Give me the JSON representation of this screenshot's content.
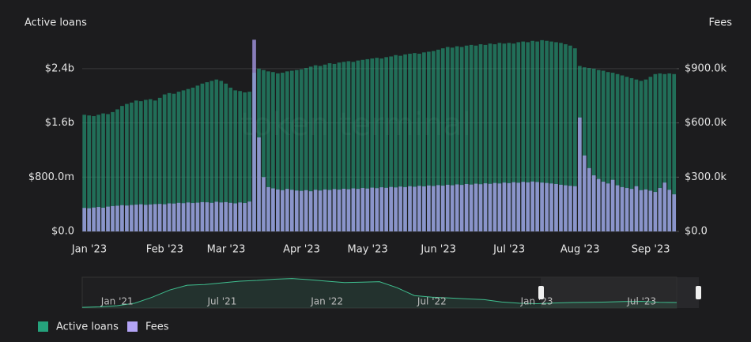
{
  "chart_data": [
    {
      "type": "bar",
      "y_label": "Active loans",
      "y2_label": "Fees",
      "watermark": "token terminal",
      "categories": [
        null,
        "Jan '23",
        null,
        null,
        null,
        null,
        null,
        null,
        null,
        null,
        null,
        null,
        null,
        null,
        null,
        null,
        null,
        "Feb '23",
        null,
        null,
        null,
        null,
        null,
        null,
        null,
        null,
        null,
        null,
        null,
        null,
        "Mar '23",
        null,
        null,
        null,
        null,
        null,
        null,
        null,
        null,
        null,
        null,
        null,
        null,
        null,
        null,
        null,
        "Apr '23",
        null,
        null,
        null,
        null,
        null,
        null,
        null,
        null,
        null,
        null,
        null,
        null,
        null,
        "May '23",
        null,
        null,
        null,
        null,
        null,
        null,
        null,
        null,
        null,
        null,
        null,
        null,
        null,
        null,
        "Jun '23",
        null,
        null,
        null,
        null,
        null,
        null,
        null,
        null,
        null,
        null,
        null,
        null,
        null,
        null,
        "Jul '23",
        null,
        null,
        null,
        null,
        null,
        null,
        null,
        null,
        null,
        null,
        null,
        null,
        null,
        null,
        "Aug '23",
        null,
        null,
        null,
        null,
        null,
        null,
        null,
        null,
        null,
        null,
        null,
        null,
        null,
        null,
        "Sep '23",
        null,
        null,
        null,
        null,
        null
      ],
      "series": [
        {
          "name": "Active loans",
          "color": "#25a27c",
          "values": [
            1.72,
            1.71,
            1.7,
            1.72,
            1.74,
            1.73,
            1.76,
            1.8,
            1.85,
            1.88,
            1.9,
            1.93,
            1.92,
            1.94,
            1.95,
            1.93,
            1.97,
            2.02,
            2.04,
            2.03,
            2.06,
            2.08,
            2.1,
            2.12,
            2.15,
            2.18,
            2.2,
            2.22,
            2.24,
            2.22,
            2.18,
            2.12,
            2.08,
            2.07,
            2.05,
            2.06,
            2.34,
            2.4,
            2.38,
            2.36,
            2.35,
            2.33,
            2.34,
            2.36,
            2.37,
            2.38,
            2.39,
            2.41,
            2.43,
            2.45,
            2.44,
            2.46,
            2.48,
            2.47,
            2.49,
            2.5,
            2.51,
            2.5,
            2.52,
            2.53,
            2.54,
            2.55,
            2.56,
            2.55,
            2.57,
            2.58,
            2.6,
            2.59,
            2.61,
            2.62,
            2.63,
            2.62,
            2.64,
            2.65,
            2.66,
            2.68,
            2.7,
            2.72,
            2.71,
            2.73,
            2.72,
            2.74,
            2.75,
            2.74,
            2.76,
            2.75,
            2.77,
            2.76,
            2.78,
            2.77,
            2.78,
            2.77,
            2.79,
            2.8,
            2.79,
            2.81,
            2.8,
            2.82,
            2.81,
            2.8,
            2.79,
            2.78,
            2.76,
            2.74,
            2.7,
            2.44,
            2.42,
            2.41,
            2.4,
            2.38,
            2.37,
            2.35,
            2.34,
            2.32,
            2.3,
            2.28,
            2.26,
            2.24,
            2.22,
            2.24,
            2.28,
            2.32,
            2.33,
            2.32,
            2.33,
            2.32
          ]
        },
        {
          "name": "Fees",
          "color": "#b3a4f6",
          "axis": "y2",
          "values": [
            130,
            128,
            132,
            135,
            131,
            137,
            140,
            142,
            145,
            143,
            146,
            148,
            150,
            147,
            149,
            151,
            152,
            150,
            155,
            154,
            158,
            156,
            160,
            157,
            159,
            162,
            161,
            158,
            164,
            160,
            162,
            158,
            155,
            160,
            157,
            165,
            1060,
            520,
            300,
            245,
            238,
            232,
            228,
            235,
            230,
            226,
            224,
            228,
            222,
            230,
            226,
            232,
            229,
            234,
            231,
            236,
            233,
            238,
            235,
            240,
            237,
            242,
            239,
            244,
            241,
            246,
            243,
            248,
            245,
            250,
            247,
            252,
            249,
            254,
            251,
            256,
            253,
            258,
            255,
            260,
            257,
            262,
            259,
            264,
            261,
            266,
            263,
            268,
            265,
            270,
            267,
            272,
            269,
            274,
            271,
            276,
            273,
            270,
            268,
            265,
            262,
            258,
            255,
            252,
            250,
            630,
            420,
            350,
            310,
            290,
            275,
            265,
            285,
            255,
            245,
            240,
            235,
            250,
            228,
            232,
            225,
            218,
            240,
            270,
            230,
            205
          ]
        }
      ],
      "ylim": [
        0,
        2.9
      ],
      "yticks": [
        {
          "value": 0,
          "label": "$0.0"
        },
        {
          "value": 0.8,
          "label": "$800.0m"
        },
        {
          "value": 1.6,
          "label": "$1.6b"
        },
        {
          "value": 2.4,
          "label": "$2.4b"
        }
      ],
      "y2lim": [
        0,
        1087.5
      ],
      "y2ticks": [
        {
          "value": 0,
          "label": "$0.0"
        },
        {
          "value": 300,
          "label": "$300.0k"
        },
        {
          "value": 600,
          "label": "$600.0k"
        },
        {
          "value": 900,
          "label": "$900.0k"
        }
      ],
      "grid": true
    },
    {
      "type": "line",
      "color": "#3fbf8f",
      "categories": [
        null,
        null,
        "Jan '21",
        null,
        null,
        null,
        null,
        null,
        "Jul '21",
        null,
        null,
        null,
        null,
        null,
        "Jan '22",
        null,
        null,
        null,
        null,
        null,
        "Jul '22",
        null,
        null,
        null,
        null,
        null,
        "Jan '23",
        null,
        null,
        null,
        null,
        null,
        "Jul '23",
        null,
        null
      ],
      "values": [
        0.3,
        0.5,
        1.0,
        2.0,
        4.5,
        7.5,
        9.5,
        9.8,
        10.5,
        11.2,
        11.5,
        12.0,
        12.3,
        11.8,
        11.2,
        10.6,
        10.8,
        11.0,
        8.5,
        5.2,
        4.5,
        4.2,
        3.8,
        3.5,
        2.5,
        2.0,
        1.8,
        2.1,
        2.3,
        2.4,
        2.5,
        2.7,
        2.8,
        2.4,
        2.3
      ],
      "ylim": [
        0,
        12.5
      ]
    }
  ]
}
